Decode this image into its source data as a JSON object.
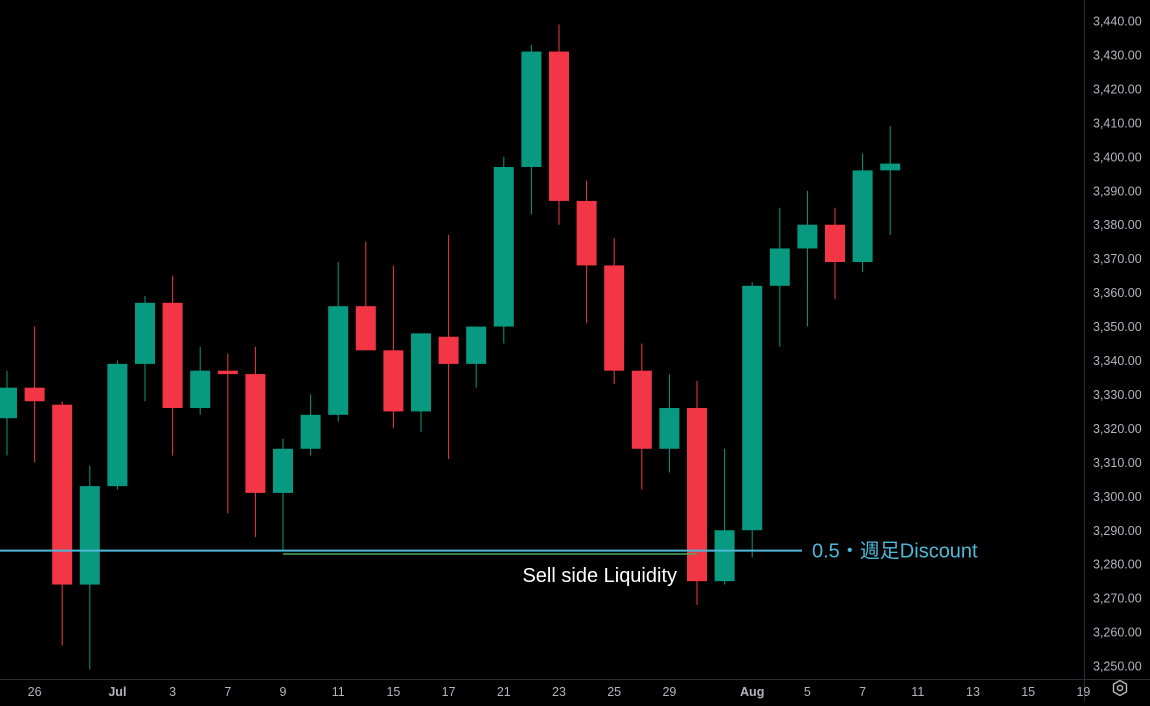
{
  "theme": {
    "background": "#000000",
    "up_color": "#089981",
    "down_color": "#f23645",
    "axis_text_color": "#b2b5be",
    "axis_line_color": "#2a2e39",
    "level_line_color": "#4fb8d8",
    "liquidity_line_color": "#4caf50",
    "annotation_text_color": "#ffffff"
  },
  "chart_data": {
    "type": "candlestick",
    "timeframe_note": "daily",
    "ylim": [
      3245,
      3443
    ],
    "y_ticks": [
      "3,250.00",
      "3,260.00",
      "3,270.00",
      "3,280.00",
      "3,290.00",
      "3,300.00",
      "3,310.00",
      "3,320.00",
      "3,330.00",
      "3,340.00",
      "3,350.00",
      "3,360.00",
      "3,370.00",
      "3,380.00",
      "3,390.00",
      "3,400.00",
      "3,410.00",
      "3,420.00",
      "3,430.00",
      "3,440.00"
    ],
    "x_ticks": [
      {
        "label": "26",
        "slot": 1,
        "bold": false
      },
      {
        "label": "Jul",
        "slot": 4,
        "bold": true
      },
      {
        "label": "3",
        "slot": 6,
        "bold": false
      },
      {
        "label": "7",
        "slot": 8,
        "bold": false
      },
      {
        "label": "9",
        "slot": 10,
        "bold": false
      },
      {
        "label": "11",
        "slot": 12,
        "bold": false
      },
      {
        "label": "15",
        "slot": 14,
        "bold": false
      },
      {
        "label": "17",
        "slot": 16,
        "bold": false
      },
      {
        "label": "21",
        "slot": 18,
        "bold": false
      },
      {
        "label": "23",
        "slot": 20,
        "bold": false
      },
      {
        "label": "25",
        "slot": 22,
        "bold": false
      },
      {
        "label": "29",
        "slot": 24,
        "bold": false
      },
      {
        "label": "Aug",
        "slot": 27,
        "bold": true
      },
      {
        "label": "5",
        "slot": 29,
        "bold": false
      },
      {
        "label": "7",
        "slot": 31,
        "bold": false
      },
      {
        "label": "11",
        "slot": 33,
        "bold": false
      },
      {
        "label": "13",
        "slot": 35,
        "bold": false
      },
      {
        "label": "15",
        "slot": 37,
        "bold": false
      },
      {
        "label": "19",
        "slot": 39,
        "bold": false
      }
    ],
    "candles": [
      {
        "o": 3323,
        "h": 3337,
        "l": 3312,
        "c": 3332
      },
      {
        "o": 3332,
        "h": 3350,
        "l": 3310,
        "c": 3328
      },
      {
        "o": 3327,
        "h": 3328,
        "l": 3256,
        "c": 3274
      },
      {
        "o": 3274,
        "h": 3309,
        "l": 3249,
        "c": 3303
      },
      {
        "o": 3303,
        "h": 3340,
        "l": 3302,
        "c": 3339
      },
      {
        "o": 3339,
        "h": 3359,
        "l": 3328,
        "c": 3357
      },
      {
        "o": 3357,
        "h": 3365,
        "l": 3312,
        "c": 3326
      },
      {
        "o": 3326,
        "h": 3344,
        "l": 3324,
        "c": 3337
      },
      {
        "o": 3337,
        "h": 3342,
        "l": 3295,
        "c": 3336
      },
      {
        "o": 3336,
        "h": 3344,
        "l": 3288,
        "c": 3301
      },
      {
        "o": 3301,
        "h": 3317,
        "l": 3284,
        "c": 3314
      },
      {
        "o": 3314,
        "h": 3330,
        "l": 3312,
        "c": 3324
      },
      {
        "o": 3324,
        "h": 3369,
        "l": 3322,
        "c": 3356
      },
      {
        "o": 3356,
        "h": 3375,
        "l": 3343,
        "c": 3343
      },
      {
        "o": 3343,
        "h": 3368,
        "l": 3320,
        "c": 3325
      },
      {
        "o": 3325,
        "h": 3347,
        "l": 3319,
        "c": 3348
      },
      {
        "o": 3347,
        "h": 3377,
        "l": 3311,
        "c": 3339
      },
      {
        "o": 3339,
        "h": 3349,
        "l": 3332,
        "c": 3350
      },
      {
        "o": 3350,
        "h": 3400,
        "l": 3345,
        "c": 3397
      },
      {
        "o": 3397,
        "h": 3433,
        "l": 3383,
        "c": 3431
      },
      {
        "o": 3431,
        "h": 3439,
        "l": 3380,
        "c": 3387
      },
      {
        "o": 3387,
        "h": 3393,
        "l": 3351,
        "c": 3368
      },
      {
        "o": 3368,
        "h": 3376,
        "l": 3333,
        "c": 3337
      },
      {
        "o": 3337,
        "h": 3345,
        "l": 3302,
        "c": 3314
      },
      {
        "o": 3314,
        "h": 3336,
        "l": 3307,
        "c": 3326
      },
      {
        "o": 3326,
        "h": 3334,
        "l": 3268,
        "c": 3275
      },
      {
        "o": 3275,
        "h": 3314,
        "l": 3274,
        "c": 3290
      },
      {
        "o": 3290,
        "h": 3363,
        "l": 3282,
        "c": 3362
      },
      {
        "o": 3362,
        "h": 3385,
        "l": 3344,
        "c": 3373
      },
      {
        "o": 3373,
        "h": 3390,
        "l": 3350,
        "c": 3380
      },
      {
        "o": 3380,
        "h": 3385,
        "l": 3358,
        "c": 3369
      },
      {
        "o": 3369,
        "h": 3401,
        "l": 3366,
        "c": 3396
      },
      {
        "o": 3396,
        "h": 3409,
        "l": 3377,
        "c": 3398
      }
    ],
    "annotations": {
      "level_label": "0.5・週足Discount",
      "level_value": 3284,
      "liquidity_label": "Sell side Liquidity",
      "liquidity_value": 3283,
      "liquidity_start_candle": 10,
      "liquidity_end_candle": 25
    }
  },
  "icons": {
    "settings": "settings-gear-icon"
  }
}
